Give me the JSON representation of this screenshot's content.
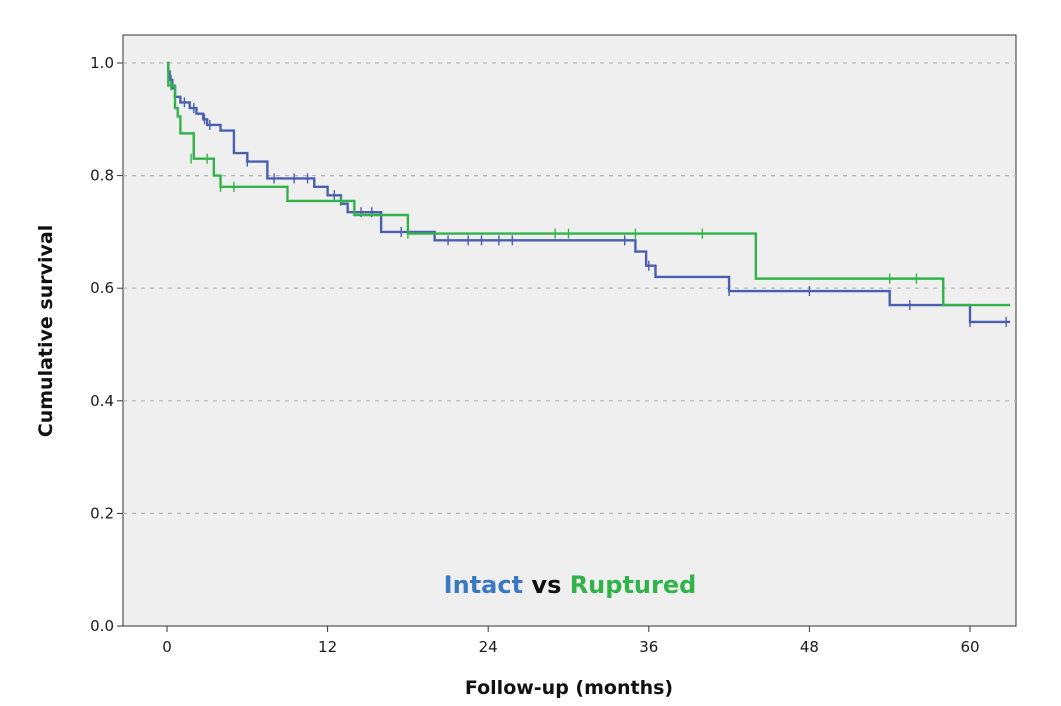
{
  "chart_data": {
    "type": "line",
    "subtype": "kaplan-meier-step",
    "title": "",
    "xlabel": "Follow-up (months)",
    "ylabel": "Cumulative survival",
    "xlim": [
      -3,
      63
    ],
    "ylim": [
      0,
      1.0
    ],
    "x_ticks": [
      0,
      12,
      24,
      36,
      48,
      60
    ],
    "y_ticks": [
      0.0,
      0.2,
      0.4,
      0.6,
      0.8,
      1.0
    ],
    "y_tick_labels": [
      "0.0",
      "0.2",
      "0.4",
      "0.6",
      "0.8",
      "1.0"
    ],
    "grid": "horizontal dashed",
    "background": "#efefef",
    "annotation": {
      "parts": [
        {
          "text": "Intact",
          "color": "#3a78c2"
        },
        {
          "text": " vs ",
          "color": "#111111"
        },
        {
          "text": "Ruptured",
          "color": "#31b34a"
        }
      ]
    },
    "series": [
      {
        "color": "#4a5fb0",
        "steps": [
          [
            0,
            1.0
          ],
          [
            0.1,
            0.985
          ],
          [
            0.2,
            0.97
          ],
          [
            0.4,
            0.955
          ],
          [
            0.6,
            0.94
          ],
          [
            1.0,
            0.93
          ],
          [
            1.7,
            0.92
          ],
          [
            2.2,
            0.91
          ],
          [
            2.7,
            0.9
          ],
          [
            3.0,
            0.89
          ],
          [
            4.0,
            0.88
          ],
          [
            5.0,
            0.84
          ],
          [
            6.0,
            0.825
          ],
          [
            7.5,
            0.795
          ],
          [
            11.0,
            0.78
          ],
          [
            12.0,
            0.765
          ],
          [
            13.0,
            0.75
          ],
          [
            13.5,
            0.735
          ],
          [
            16.0,
            0.7
          ],
          [
            20.0,
            0.685
          ],
          [
            35.0,
            0.665
          ],
          [
            35.8,
            0.64
          ],
          [
            36.5,
            0.62
          ],
          [
            42.0,
            0.595
          ],
          [
            54.0,
            0.57
          ],
          [
            60.0,
            0.54
          ],
          [
            63.0,
            0.54
          ]
        ],
        "censored": [
          [
            0.3,
            0.97
          ],
          [
            1.3,
            0.93
          ],
          [
            2.0,
            0.92
          ],
          [
            2.8,
            0.9
          ],
          [
            3.2,
            0.89
          ],
          [
            6.0,
            0.825
          ],
          [
            8.0,
            0.795
          ],
          [
            9.5,
            0.795
          ],
          [
            10.5,
            0.795
          ],
          [
            12.5,
            0.765
          ],
          [
            14.5,
            0.735
          ],
          [
            15.3,
            0.735
          ],
          [
            17.5,
            0.7
          ],
          [
            21.0,
            0.685
          ],
          [
            22.5,
            0.685
          ],
          [
            23.5,
            0.685
          ],
          [
            24.8,
            0.685
          ],
          [
            25.8,
            0.685
          ],
          [
            34.2,
            0.685
          ],
          [
            36.0,
            0.64
          ],
          [
            42.0,
            0.595
          ],
          [
            48.0,
            0.595
          ],
          [
            55.5,
            0.57
          ],
          [
            60.0,
            0.54
          ],
          [
            62.7,
            0.54
          ]
        ]
      },
      {
        "color": "#31b34a",
        "steps": [
          [
            0,
            1.0
          ],
          [
            0.1,
            0.96
          ],
          [
            0.6,
            0.92
          ],
          [
            0.8,
            0.905
          ],
          [
            1.0,
            0.875
          ],
          [
            2.0,
            0.83
          ],
          [
            3.5,
            0.8
          ],
          [
            4.0,
            0.78
          ],
          [
            9.0,
            0.755
          ],
          [
            14.0,
            0.73
          ],
          [
            18.0,
            0.697
          ],
          [
            44.0,
            0.617
          ],
          [
            58.0,
            0.57
          ],
          [
            63.0,
            0.57
          ]
        ],
        "censored": [
          [
            0.1,
            0.985
          ],
          [
            0.3,
            0.96
          ],
          [
            1.8,
            0.83
          ],
          [
            3.0,
            0.83
          ],
          [
            4.0,
            0.78
          ],
          [
            5.0,
            0.78
          ],
          [
            13.0,
            0.755
          ],
          [
            18.0,
            0.697
          ],
          [
            29.0,
            0.697
          ],
          [
            30.0,
            0.697
          ],
          [
            35.0,
            0.697
          ],
          [
            40.0,
            0.697
          ],
          [
            54.0,
            0.617
          ],
          [
            56.0,
            0.617
          ]
        ]
      }
    ]
  }
}
